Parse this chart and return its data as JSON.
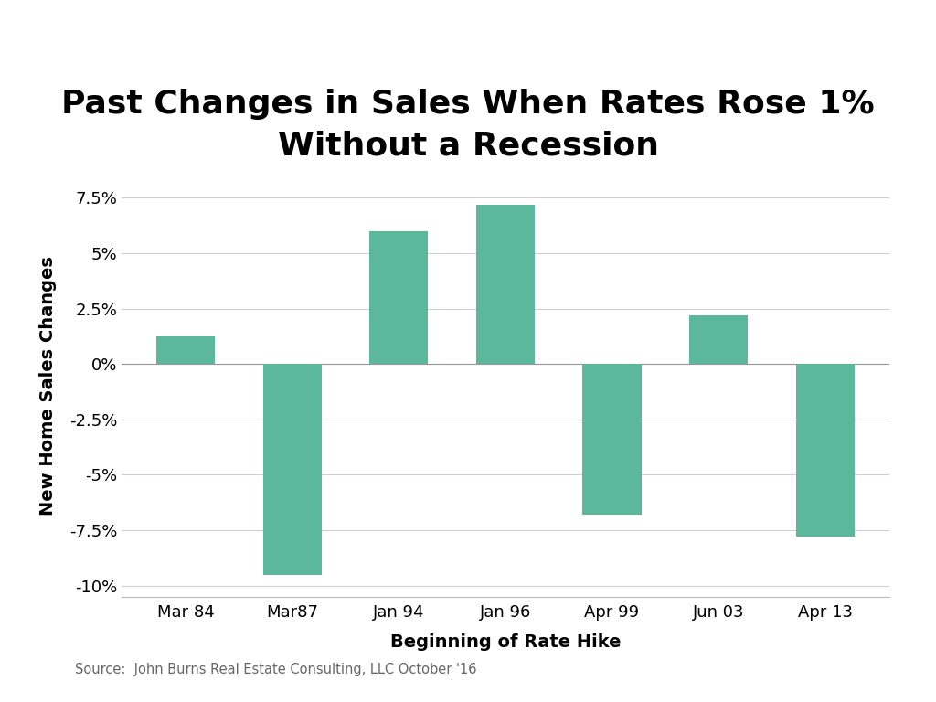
{
  "categories": [
    "Mar 84",
    "Mar87",
    "Jan 94",
    "Jan 96",
    "Apr 99",
    "Jun 03",
    "Apr 13"
  ],
  "values": [
    1.25,
    -9.5,
    6.0,
    7.2,
    -6.8,
    2.2,
    -7.8
  ],
  "bar_color": "#5bb89a",
  "title_line1": "Past Changes in Sales When Rates Rose 1%",
  "title_line2": "Without a Recession",
  "xlabel": "Beginning of Rate Hike",
  "ylabel": "New Home Sales Changes",
  "ylim": [
    -10.5,
    8.5
  ],
  "yticks": [
    -10,
    -7.5,
    -5,
    -2.5,
    0,
    2.5,
    5,
    7.5
  ],
  "ytick_labels": [
    "-10%",
    "-7.5%",
    "-5%",
    "-2.5%",
    "0%",
    "2.5%",
    "5%",
    "7.5%"
  ],
  "source_text": "Source:  John Burns Real Estate Consulting, LLC October '16",
  "background_color": "#ffffff",
  "title_fontsize": 26,
  "axis_label_fontsize": 14,
  "tick_fontsize": 13,
  "source_fontsize": 10.5,
  "bar_width": 0.55
}
